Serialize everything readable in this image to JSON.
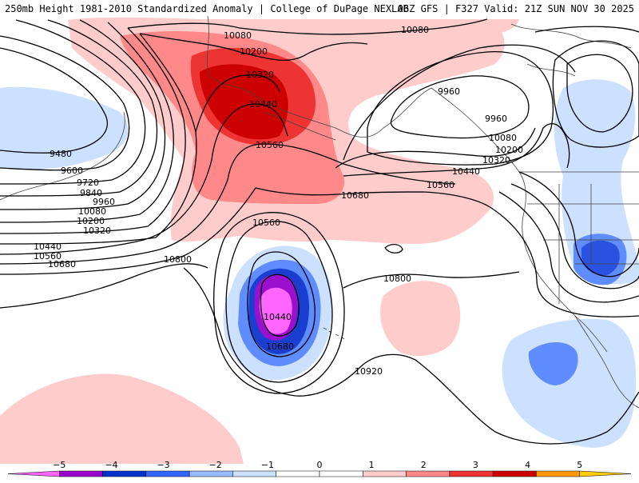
{
  "header": {
    "title": "250mb Height 1981-2010 Standardized Anomaly | College of DuPage NEXLAB",
    "run": "06Z GFS | F327 Valid: 21Z SUN NOV 30 2025"
  },
  "contour_labels": {
    "l10080_top": "10080",
    "l10200_top": "10200",
    "l10320_top": "10320",
    "l10440_top": "10440",
    "l10560_top": "10560",
    "l10080_ne": "10080",
    "l9960_e": "9960",
    "l9960_e2": "9960",
    "l10080_e": "10080",
    "l10200_e": "10200",
    "l10320_e": "10320",
    "l10440_e": "10440",
    "l10560_e": "10560",
    "l10680_c": "10680",
    "l9480_w": "9480",
    "l9600_w": "9600",
    "l9720_w": "9720",
    "l9840_w": "9840",
    "l9960_w": "9960",
    "l10080_w": "10080",
    "l10200_w": "10200",
    "l10320_w": "10320",
    "l10440_w": "10440",
    "l10560_w": "10560",
    "l10680_w": "10680",
    "l10800_w": "10800",
    "l10560_low": "10560",
    "l10440_low": "10440",
    "l10680_low": "10680",
    "l10800_c": "10800",
    "l10920_c": "10920"
  },
  "colorbar": {
    "ticks": [
      "−5",
      "−4",
      "−3",
      "−2",
      "−1",
      "0",
      "1",
      "2",
      "3",
      "4",
      "5"
    ],
    "colors": [
      "#ff66ff",
      "#9900cc",
      "#0033cc",
      "#3366ff",
      "#99bbff",
      "#cce0ff",
      "#ffffff",
      "#ffffff",
      "#ffcccc",
      "#ff8888",
      "#ee3333",
      "#cc0000",
      "#ff9900",
      "#ffcc00"
    ]
  }
}
